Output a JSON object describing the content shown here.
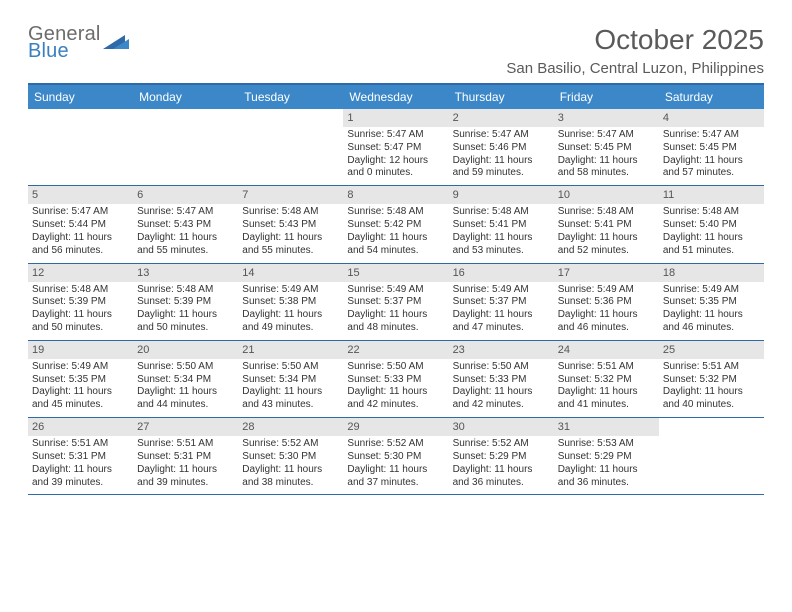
{
  "brand": {
    "line1": "General",
    "line2": "Blue",
    "text_color": "#6c6c6c",
    "accent_color": "#3b7fbf"
  },
  "title": "October 2025",
  "location": "San Basilio, Central Luzon, Philippines",
  "colors": {
    "header_bg": "#3b87c8",
    "header_rule": "#2f6aa8",
    "daynum_bg": "#e6e6e6",
    "text": "#333333"
  },
  "daysOfWeek": [
    "Sunday",
    "Monday",
    "Tuesday",
    "Wednesday",
    "Thursday",
    "Friday",
    "Saturday"
  ],
  "weeks": [
    [
      {
        "blank": true
      },
      {
        "blank": true
      },
      {
        "blank": true
      },
      {
        "n": "1",
        "sunrise": "5:47 AM",
        "sunset": "5:47 PM",
        "dayH": "12",
        "dayM": "0"
      },
      {
        "n": "2",
        "sunrise": "5:47 AM",
        "sunset": "5:46 PM",
        "dayH": "11",
        "dayM": "59"
      },
      {
        "n": "3",
        "sunrise": "5:47 AM",
        "sunset": "5:45 PM",
        "dayH": "11",
        "dayM": "58"
      },
      {
        "n": "4",
        "sunrise": "5:47 AM",
        "sunset": "5:45 PM",
        "dayH": "11",
        "dayM": "57"
      }
    ],
    [
      {
        "n": "5",
        "sunrise": "5:47 AM",
        "sunset": "5:44 PM",
        "dayH": "11",
        "dayM": "56"
      },
      {
        "n": "6",
        "sunrise": "5:47 AM",
        "sunset": "5:43 PM",
        "dayH": "11",
        "dayM": "55"
      },
      {
        "n": "7",
        "sunrise": "5:48 AM",
        "sunset": "5:43 PM",
        "dayH": "11",
        "dayM": "55"
      },
      {
        "n": "8",
        "sunrise": "5:48 AM",
        "sunset": "5:42 PM",
        "dayH": "11",
        "dayM": "54"
      },
      {
        "n": "9",
        "sunrise": "5:48 AM",
        "sunset": "5:41 PM",
        "dayH": "11",
        "dayM": "53"
      },
      {
        "n": "10",
        "sunrise": "5:48 AM",
        "sunset": "5:41 PM",
        "dayH": "11",
        "dayM": "52"
      },
      {
        "n": "11",
        "sunrise": "5:48 AM",
        "sunset": "5:40 PM",
        "dayH": "11",
        "dayM": "51"
      }
    ],
    [
      {
        "n": "12",
        "sunrise": "5:48 AM",
        "sunset": "5:39 PM",
        "dayH": "11",
        "dayM": "50"
      },
      {
        "n": "13",
        "sunrise": "5:48 AM",
        "sunset": "5:39 PM",
        "dayH": "11",
        "dayM": "50"
      },
      {
        "n": "14",
        "sunrise": "5:49 AM",
        "sunset": "5:38 PM",
        "dayH": "11",
        "dayM": "49"
      },
      {
        "n": "15",
        "sunrise": "5:49 AM",
        "sunset": "5:37 PM",
        "dayH": "11",
        "dayM": "48"
      },
      {
        "n": "16",
        "sunrise": "5:49 AM",
        "sunset": "5:37 PM",
        "dayH": "11",
        "dayM": "47"
      },
      {
        "n": "17",
        "sunrise": "5:49 AM",
        "sunset": "5:36 PM",
        "dayH": "11",
        "dayM": "46"
      },
      {
        "n": "18",
        "sunrise": "5:49 AM",
        "sunset": "5:35 PM",
        "dayH": "11",
        "dayM": "46"
      }
    ],
    [
      {
        "n": "19",
        "sunrise": "5:49 AM",
        "sunset": "5:35 PM",
        "dayH": "11",
        "dayM": "45"
      },
      {
        "n": "20",
        "sunrise": "5:50 AM",
        "sunset": "5:34 PM",
        "dayH": "11",
        "dayM": "44"
      },
      {
        "n": "21",
        "sunrise": "5:50 AM",
        "sunset": "5:34 PM",
        "dayH": "11",
        "dayM": "43"
      },
      {
        "n": "22",
        "sunrise": "5:50 AM",
        "sunset": "5:33 PM",
        "dayH": "11",
        "dayM": "42"
      },
      {
        "n": "23",
        "sunrise": "5:50 AM",
        "sunset": "5:33 PM",
        "dayH": "11",
        "dayM": "42"
      },
      {
        "n": "24",
        "sunrise": "5:51 AM",
        "sunset": "5:32 PM",
        "dayH": "11",
        "dayM": "41"
      },
      {
        "n": "25",
        "sunrise": "5:51 AM",
        "sunset": "5:32 PM",
        "dayH": "11",
        "dayM": "40"
      }
    ],
    [
      {
        "n": "26",
        "sunrise": "5:51 AM",
        "sunset": "5:31 PM",
        "dayH": "11",
        "dayM": "39"
      },
      {
        "n": "27",
        "sunrise": "5:51 AM",
        "sunset": "5:31 PM",
        "dayH": "11",
        "dayM": "39"
      },
      {
        "n": "28",
        "sunrise": "5:52 AM",
        "sunset": "5:30 PM",
        "dayH": "11",
        "dayM": "38"
      },
      {
        "n": "29",
        "sunrise": "5:52 AM",
        "sunset": "5:30 PM",
        "dayH": "11",
        "dayM": "37"
      },
      {
        "n": "30",
        "sunrise": "5:52 AM",
        "sunset": "5:29 PM",
        "dayH": "11",
        "dayM": "36"
      },
      {
        "n": "31",
        "sunrise": "5:53 AM",
        "sunset": "5:29 PM",
        "dayH": "11",
        "dayM": "36"
      },
      {
        "blank": true
      }
    ]
  ]
}
